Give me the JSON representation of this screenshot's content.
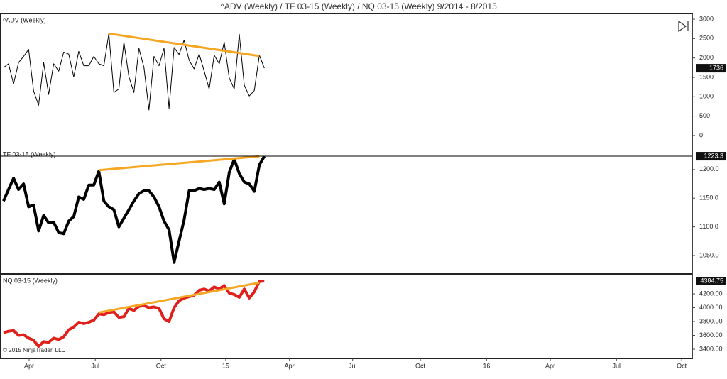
{
  "title": "^ADV (Weekly) / TF 03-15 (Weekly) / NQ 03-15 (Weekly)  9/2014 - 8/2015",
  "copyright": "© 2015 NinjaTrader, LLC",
  "chart_data": [
    {
      "type": "line",
      "title": "^ADV (Weekly)",
      "color": "#000000",
      "width": 1,
      "x": [
        0,
        1,
        2,
        3,
        4,
        5,
        6,
        7,
        8,
        9,
        10,
        11,
        12,
        13,
        14,
        15,
        16,
        17,
        18,
        19,
        20,
        21,
        22,
        23,
        24,
        25,
        26,
        27,
        28,
        29,
        30,
        31,
        32,
        33,
        34,
        35,
        36,
        37,
        38,
        39,
        40,
        41,
        42,
        43,
        44,
        45,
        46,
        47,
        48,
        49,
        50,
        51,
        52
      ],
      "values": [
        1750,
        1850,
        1330,
        1880,
        2040,
        2220,
        1150,
        780,
        1880,
        1060,
        1850,
        1660,
        2150,
        2100,
        1510,
        2170,
        1800,
        1800,
        2040,
        1850,
        1800,
        2630,
        1110,
        1200,
        2410,
        1510,
        1110,
        2250,
        1750,
        660,
        2040,
        1800,
        2250,
        700,
        2270,
        2090,
        2460,
        1940,
        1720,
        2100,
        1660,
        1200,
        2070,
        1850,
        2410,
        1480,
        1200,
        2610,
        1290,
        1020,
        1160,
        2070,
        1736
      ],
      "trendline": {
        "color": "#f5a623",
        "x": [
          21,
          51
        ],
        "values": [
          2630,
          2050
        ]
      },
      "xlim": [
        -0.7,
        137.3
      ],
      "ylim": [
        -313,
        3129
      ],
      "yticks": [
        0,
        500,
        1000,
        1500,
        2000,
        2500,
        3000
      ]
    },
    {
      "type": "line",
      "title": "TF 03-15 (Weekly)",
      "color": "#000000",
      "width": 4,
      "x": [
        0,
        1,
        2,
        3,
        4,
        5,
        6,
        7,
        8,
        9,
        10,
        11,
        12,
        13,
        14,
        15,
        16,
        17,
        18,
        19,
        20,
        21,
        22,
        23,
        24,
        25,
        26,
        27,
        28,
        29,
        30,
        31,
        32,
        33,
        34,
        35,
        36,
        37,
        38,
        39,
        40,
        41,
        42,
        43,
        44,
        45,
        46,
        47,
        48,
        49,
        50,
        51,
        52
      ],
      "values": [
        1145,
        1165,
        1185,
        1165,
        1175,
        1135,
        1138,
        1093,
        1120,
        1107,
        1108,
        1090,
        1088,
        1110,
        1118,
        1152,
        1148,
        1173,
        1173,
        1197,
        1145,
        1135,
        1130,
        1100,
        1115,
        1130,
        1145,
        1158,
        1163,
        1163,
        1152,
        1135,
        1110,
        1095,
        1038,
        1075,
        1112,
        1163,
        1163,
        1167,
        1165,
        1167,
        1165,
        1178,
        1140,
        1195,
        1218,
        1193,
        1178,
        1175,
        1162,
        1208,
        1223.3
      ],
      "trendline": {
        "color": "#f5a623",
        "x": [
          19,
          51
        ],
        "values": [
          1199,
          1223
        ]
      },
      "xlim": [
        -0.7,
        137.3
      ],
      "ylim": [
        1019,
        1237
      ],
      "yticks": [
        {
          "value": 1050,
          "label": "1050.0"
        },
        {
          "value": 1100,
          "label": "1100.0"
        },
        {
          "value": 1150,
          "label": "1150.0"
        },
        {
          "value": 1200,
          "label": "1200.0"
        }
      ]
    },
    {
      "type": "line",
      "title": "NQ 03-15 (Weekly)",
      "color": "#e0201b",
      "width": 4,
      "x": [
        0,
        1,
        2,
        3,
        4,
        5,
        6,
        7,
        8,
        9,
        10,
        11,
        12,
        13,
        14,
        15,
        16,
        17,
        18,
        19,
        20,
        21,
        22,
        23,
        24,
        25,
        26,
        27,
        28,
        29,
        30,
        31,
        32,
        33,
        34,
        35,
        36,
        37,
        38,
        39,
        40,
        41,
        42,
        43,
        44,
        45,
        46,
        47,
        48,
        49,
        50,
        51,
        52
      ],
      "values": [
        3640,
        3660,
        3670,
        3600,
        3610,
        3560,
        3530,
        3440,
        3510,
        3500,
        3560,
        3540,
        3580,
        3680,
        3720,
        3790,
        3770,
        3790,
        3820,
        3910,
        3900,
        3930,
        3940,
        3860,
        3870,
        3990,
        3960,
        4020,
        4030,
        4000,
        4010,
        3990,
        3840,
        3800,
        4000,
        4100,
        4140,
        4160,
        4180,
        4250,
        4270,
        4240,
        4300,
        4270,
        4320,
        4210,
        4190,
        4150,
        4270,
        4140,
        4230,
        4380,
        4384.75
      ],
      "trendline": {
        "color": "#f5a623",
        "x": [
          19,
          51
        ],
        "values": [
          3930,
          4360
        ]
      },
      "xlim": [
        -0.7,
        137.3
      ],
      "ylim": [
        3267,
        4477
      ],
      "yticks": [
        {
          "value": 3400,
          "label": "3400.00"
        },
        {
          "value": 3600,
          "label": "3600.00"
        },
        {
          "value": 3800,
          "label": "3800.00"
        },
        {
          "value": 4000,
          "label": "4000.00"
        },
        {
          "value": 4200,
          "label": "4200.00"
        }
      ],
      "xticks": [
        {
          "value": 5.1,
          "label": "Apr"
        },
        {
          "value": 18.3,
          "label": "Jul"
        },
        {
          "value": 31.4,
          "label": "Oct"
        },
        {
          "value": 44.3,
          "label": "15"
        },
        {
          "value": 57.0,
          "label": "Apr"
        },
        {
          "value": 69.6,
          "label": "Jul"
        },
        {
          "value": 83.1,
          "label": "Oct"
        },
        {
          "value": 96.3,
          "label": "16"
        },
        {
          "value": 109.0,
          "label": "Apr"
        },
        {
          "value": 122.2,
          "label": "Jul"
        },
        {
          "value": 135.2,
          "label": "Oct"
        }
      ]
    }
  ]
}
